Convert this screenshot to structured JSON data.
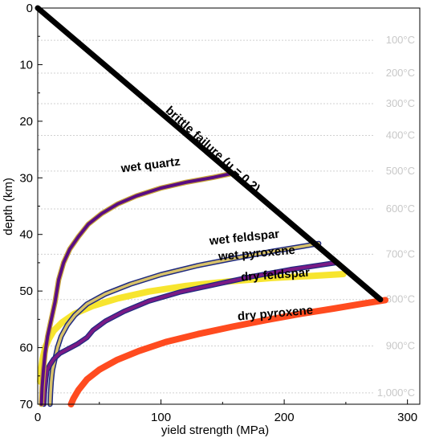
{
  "chart_data": {
    "type": "line",
    "title": "",
    "xlabel": "yield strength (MPa)",
    "ylabel": "depth (km)",
    "xlim": [
      0,
      310
    ],
    "ylim": [
      70,
      0
    ],
    "xticks": [
      "0",
      "100",
      "200",
      "300"
    ],
    "yticks": [
      "0",
      "10",
      "20",
      "30",
      "40",
      "50",
      "60",
      "70"
    ],
    "temperature_axis": {
      "labels": [
        "100°C",
        "200°C",
        "300°C",
        "400°C",
        "500°C",
        "600°C",
        "700°C",
        "800°C",
        "900°C",
        "1,000°C"
      ],
      "depths": [
        5.7,
        11.5,
        16.9,
        22.5,
        28.8,
        35.5,
        43.5,
        51.5,
        59.7,
        68.0
      ]
    },
    "grid": true,
    "series": [
      {
        "name": "brittle failure (μ = 0.2)",
        "color": "#000000",
        "x": [
          0,
          278
        ],
        "y": [
          0,
          51.5
        ]
      },
      {
        "name": "wet quartz",
        "color": "#5a0d82",
        "x": [
          3,
          3.6,
          4.6,
          6,
          8,
          10.5,
          14,
          17,
          21,
          26,
          33,
          41,
          52,
          65,
          80,
          100,
          120,
          143,
          158
        ],
        "y": [
          70,
          67,
          64,
          61,
          58,
          55.5,
          52,
          48,
          45,
          42.6,
          40.4,
          38.2,
          36.3,
          34.6,
          33.2,
          31.8,
          30.8,
          29.9,
          29.2
        ]
      },
      {
        "name": "wet feldspar",
        "color": "#1f2a80",
        "x": [
          10,
          10.4,
          11,
          12,
          14,
          16,
          19,
          24,
          30,
          40,
          55,
          75,
          100,
          130,
          160,
          190,
          215,
          228
        ],
        "y": [
          70,
          68,
          66,
          64,
          62,
          60,
          58,
          56,
          54.3,
          52.3,
          50.5,
          48.8,
          47.1,
          45.5,
          44.2,
          43,
          42.1,
          41.6
        ]
      },
      {
        "name": "wet pyroxene",
        "color": "#7a1a85",
        "x": [
          5,
          5.5,
          6.3,
          7.5,
          10,
          13,
          18,
          24,
          32,
          40,
          45,
          55,
          70,
          90,
          115,
          145,
          175,
          205,
          230,
          242
        ],
        "y": [
          70,
          68,
          66,
          64,
          63,
          62,
          61,
          60.3,
          59.4,
          58.2,
          56.9,
          55.3,
          53.6,
          51.8,
          50.2,
          48.8,
          47.4,
          46.2,
          45.4,
          45
        ]
      },
      {
        "name": "dry feldspar",
        "color": "#f7e52f",
        "x": [
          2,
          2.6,
          4,
          6,
          9,
          13,
          20,
          30,
          45,
          65,
          90,
          120,
          155,
          190,
          225,
          248
        ],
        "y": [
          66,
          64,
          62,
          60,
          58.5,
          57,
          55.5,
          54,
          52.6,
          51.3,
          50.1,
          49.1,
          48.3,
          47.7,
          47.3,
          47
        ]
      },
      {
        "name": "dry pyroxene",
        "color": "#ff4b1f",
        "x": [
          27,
          29,
          33,
          40,
          50,
          64,
          82,
          104,
          130,
          158,
          186,
          214,
          240,
          262,
          282
        ],
        "y": [
          70,
          69,
          67.5,
          65.6,
          63.9,
          62.2,
          60.6,
          59,
          57.6,
          56.3,
          55.1,
          54,
          53.1,
          52.3,
          51.6
        ]
      }
    ],
    "annotations": [
      {
        "text": "brittle failure (μ = 0.2)",
        "series": 0
      },
      {
        "text": "wet quartz",
        "series": 1
      },
      {
        "text": "wet feldspar",
        "series": 2
      },
      {
        "text": "wet pyroxene",
        "series": 3
      },
      {
        "text": "dry feldspar",
        "series": 4
      },
      {
        "text": "dry pyroxene",
        "series": 5
      }
    ]
  }
}
